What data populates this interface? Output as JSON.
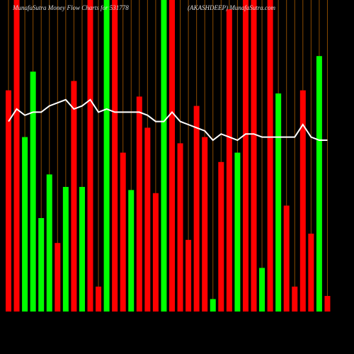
{
  "chart_data": {
    "type": "bar",
    "title": "MunafaSutra  Money Flow  Charts for 531778",
    "subtitle": "(AKASHDEEP) MunafaSutra.com",
    "ylim": [
      0,
      100
    ],
    "series": [
      {
        "type": "bar",
        "values": [
          71,
          100,
          56,
          77,
          30,
          44,
          22,
          40,
          74,
          40,
          100,
          8,
          100,
          100,
          51,
          39,
          69,
          59,
          38,
          100,
          100,
          54,
          23,
          66,
          56,
          4,
          48,
          97,
          51,
          100,
          100,
          14,
          100,
          70,
          34,
          8,
          71,
          25,
          82,
          5
        ],
        "colors": [
          "#ff0000",
          "#ff0000",
          "#00ff00",
          "#00ff00",
          "#00ff00",
          "#00ff00",
          "#ff0000",
          "#00ff00",
          "#ff0000",
          "#00ff00",
          "#ff0000",
          "#ff0000",
          "#00ff00",
          "#ff0000",
          "#ff0000",
          "#00ff00",
          "#ff0000",
          "#ff0000",
          "#ff0000",
          "#00ff00",
          "#ff0000",
          "#ff0000",
          "#ff0000",
          "#ff0000",
          "#ff0000",
          "#00ff00",
          "#ff0000",
          "#ff0000",
          "#00ff00",
          "#ff0000",
          "#ff0000",
          "#00ff00",
          "#ff0000",
          "#00ff00",
          "#ff0000",
          "#ff0000",
          "#ff0000",
          "#ff0000",
          "#00ff00",
          "#ff0000"
        ]
      },
      {
        "type": "line",
        "color": "#ffffff",
        "values": [
          61,
          65,
          63,
          64,
          64,
          66,
          67,
          68,
          65,
          66,
          68,
          64,
          65,
          64,
          64,
          64,
          64,
          63,
          61,
          61,
          64,
          61,
          60,
          59,
          58,
          55,
          57,
          56,
          55,
          57,
          57,
          56,
          56,
          56,
          56,
          56,
          60,
          56,
          55,
          55
        ]
      }
    ],
    "grid_color": "#8a4a00"
  }
}
